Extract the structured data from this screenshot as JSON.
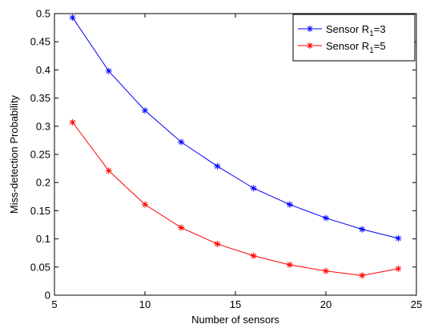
{
  "chart_data": {
    "type": "line",
    "title": "",
    "xlabel": "Number of sensors",
    "ylabel": "Miss-detection Probability",
    "xlim": [
      5,
      25
    ],
    "ylim": [
      0,
      0.5
    ],
    "xticks": [
      5,
      10,
      15,
      20,
      25
    ],
    "yticks": [
      0,
      0.05,
      0.1,
      0.15,
      0.2,
      0.25,
      0.3,
      0.35,
      0.4,
      0.45,
      0.5
    ],
    "grid": false,
    "legend_position": "top-right",
    "x": [
      6,
      8,
      10,
      12,
      14,
      16,
      18,
      20,
      22,
      24
    ],
    "series": [
      {
        "name_prefix": "Sensor R",
        "name_sub": "1",
        "name_suffix": "=3",
        "color": "#0000ff",
        "marker": "asterisk",
        "values": [
          0.493,
          0.398,
          0.328,
          0.272,
          0.229,
          0.19,
          0.161,
          0.137,
          0.117,
          0.101
        ]
      },
      {
        "name_prefix": "Sensor R",
        "name_sub": "1",
        "name_suffix": "=5",
        "color": "#ff0000",
        "marker": "asterisk",
        "values": [
          0.307,
          0.221,
          0.161,
          0.12,
          0.091,
          0.07,
          0.054,
          0.043,
          0.035,
          0.047
        ]
      }
    ]
  }
}
